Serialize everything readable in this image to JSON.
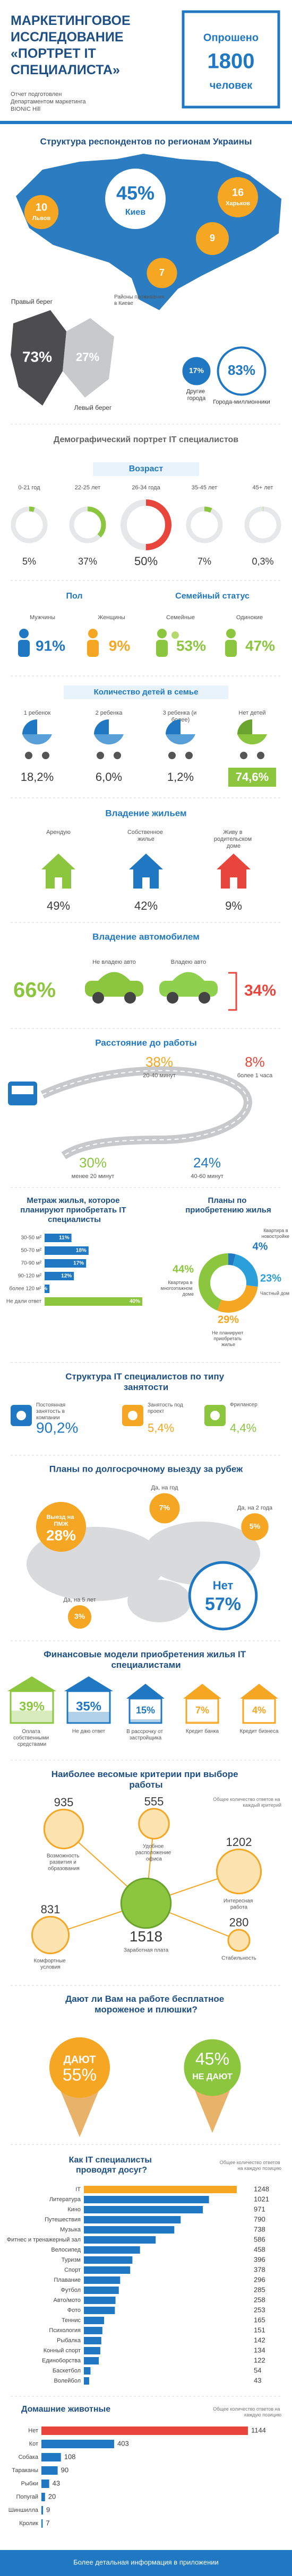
{
  "header": {
    "title": "МАРКЕТИНГОВОЕ ИССЛЕДОВАНИЕ «ПОРТРЕТ IT СПЕЦИАЛИСТА»",
    "surveyed": {
      "label": "Опрошено",
      "count": 1800,
      "unit": "человек"
    },
    "credit": "Отчет подготовлен Департаментом маркетинга BIONIC Hill"
  },
  "regions": {
    "title": "Структура респондентов по регионам Украины",
    "cities": [
      {
        "name": "Львов",
        "value": 10
      },
      {
        "name": "Киев",
        "value": 45,
        "value_label": "45%"
      },
      {
        "name": "Харьков",
        "value": 16
      },
      {
        "value": 9
      },
      {
        "value": 7
      }
    ],
    "kyiv": {
      "title": "Районы проживания в Киеве",
      "banks": [
        {
          "label": "Правый берег",
          "value": 73,
          "value_label": "73%"
        },
        {
          "label": "Левый берег",
          "value": 27,
          "value_label": "27%"
        }
      ]
    },
    "city_types": [
      {
        "label": "Другие города",
        "value": 17,
        "value_label": "17%"
      },
      {
        "label": "Города-миллионники",
        "value": 83,
        "value_label": "83%"
      }
    ]
  },
  "demographics": {
    "title": "Демографический портрет IT специалистов",
    "age": {
      "title": "Возраст",
      "items": [
        {
          "label": "0-21 год",
          "value": 5,
          "value_label": "5%"
        },
        {
          "label": "22-25 лет",
          "value": 37,
          "value_label": "37%"
        },
        {
          "label": "26-34 года",
          "value": 50,
          "value_label": "50%"
        },
        {
          "label": "35-45 лет",
          "value": 7,
          "value_label": "7%"
        },
        {
          "label": "45+ лет",
          "value": 0.3,
          "value_label": "0,3%"
        }
      ]
    },
    "gender": {
      "title": "Пол",
      "items": [
        {
          "label": "Мужчины",
          "value": 91,
          "value_label": "91%"
        },
        {
          "label": "Женщины",
          "value": 9,
          "value_label": "9%"
        }
      ]
    },
    "family": {
      "title": "Семейный статус",
      "items": [
        {
          "label": "Семейные",
          "value": 53,
          "value_label": "53%"
        },
        {
          "label": "Одинокие",
          "value": 47,
          "value_label": "47%"
        }
      ]
    },
    "children": {
      "title": "Количество детей в семье",
      "items": [
        {
          "label": "1 ребенок",
          "value": 18.2,
          "value_label": "18,2%"
        },
        {
          "label": "2 ребенка",
          "value": 6.0,
          "value_label": "6,0%"
        },
        {
          "label": "3 ребенка (и более)",
          "value": 1.2,
          "value_label": "1,2%"
        },
        {
          "label": "Нет детей",
          "value": 74.6,
          "value_label": "74,6%"
        }
      ]
    }
  },
  "housing": {
    "title": "Владение жильем",
    "items": [
      {
        "label": "Арендую",
        "value": 49,
        "value_label": "49%"
      },
      {
        "label": "Собственное жилье",
        "value": 42,
        "value_label": "42%"
      },
      {
        "label": "Живу в родительском доме",
        "value": 9,
        "value_label": "9%"
      }
    ]
  },
  "car": {
    "title": "Владение автомобилем",
    "items": [
      {
        "label": "Не владею авто",
        "value": 66,
        "value_label": "66%"
      },
      {
        "label": "Владею авто",
        "value": 34,
        "value_label": "34%"
      }
    ]
  },
  "distance": {
    "title": "Расстояние до работы",
    "items": [
      {
        "label": "менее 20 минут",
        "value": 30,
        "value_label": "30%"
      },
      {
        "label": "20-40 минут",
        "value": 38,
        "value_label": "38%"
      },
      {
        "label": "40-60 минут",
        "value": 24,
        "value_label": "24%"
      },
      {
        "label": "более 1 часа",
        "value": 8,
        "value_label": "8%"
      }
    ]
  },
  "metrage": {
    "title": "Метраж жилья, которое планируют приобретать IT специалисты",
    "items": [
      {
        "label": "30-50 м²",
        "value": 11,
        "value_label": "11%"
      },
      {
        "label": "50-70 м²",
        "value": 18,
        "value_label": "18%"
      },
      {
        "label": "70-90 м²",
        "value": 17,
        "value_label": "17%"
      },
      {
        "label": "90-120 м²",
        "value": 12,
        "value_label": "12%"
      },
      {
        "label": "более 120 м²",
        "value": 2,
        "value_label": "2%"
      },
      {
        "label": "Не дали ответ",
        "value": 40,
        "value_label": "40%"
      }
    ]
  },
  "plans": {
    "title": "Планы по приобретению жилья",
    "items": [
      {
        "label": "Квартира в новостройке",
        "value": 4,
        "value_label": "4%"
      },
      {
        "label": "Частный дом",
        "value": 23,
        "value_label": "23%"
      },
      {
        "label": "Не планируют приобретать жилье",
        "value": 29,
        "value_label": "29%"
      },
      {
        "label": "Квартира в многоэтажном доме",
        "value": 44,
        "value_label": "44%"
      }
    ]
  },
  "employment": {
    "title": "Структура IT специалистов по типу занятости",
    "items": [
      {
        "label": "Постоянная занятость в компании",
        "value": 90.2,
        "value_label": "90,2%"
      },
      {
        "label": "Занятость под проект",
        "value": 5.4,
        "value_label": "5,4%"
      },
      {
        "label": "Фрилансер",
        "value": 4.4,
        "value_label": "4,4%"
      }
    ]
  },
  "abroad": {
    "title": "Планы по долгосрочному выезду за рубеж",
    "items": [
      {
        "label": "Выезд на ПМЖ",
        "value": 28,
        "value_label": "28%"
      },
      {
        "label": "Да, на год",
        "value": 7,
        "value_label": "7%"
      },
      {
        "label": "Да, на 2 года",
        "value": 5,
        "value_label": "5%"
      },
      {
        "label": "Да, на 5 лет",
        "value": 3,
        "value_label": "3%"
      },
      {
        "label": "Нет",
        "value": 57,
        "value_label": "57%"
      }
    ]
  },
  "finance": {
    "title": "Финансовые модели приобретения жилья IT специалистами",
    "items": [
      {
        "label": "Оплата собственными средствами",
        "value": 39,
        "value_label": "39%"
      },
      {
        "label": "Не даю ответ",
        "value": 35,
        "value_label": "35%"
      },
      {
        "label": "В рассрочку от застройщика",
        "value": 15,
        "value_label": "15%"
      },
      {
        "label": "Кредит банка",
        "value": 7,
        "value_label": "7%"
      },
      {
        "label": "Кредит бизнеса",
        "value": 4,
        "value_label": "4%"
      }
    ]
  },
  "criteria": {
    "title": "Наиболее весомые критерии при выборе работы",
    "note": "Общее количество ответов на каждый критерий",
    "items": [
      {
        "label": "Возможность развития и образования",
        "value": 935
      },
      {
        "label": "Удобное расположение офиса",
        "value": 555
      },
      {
        "label": "Интересная работа",
        "value": 1202
      },
      {
        "label": "Заработная плата",
        "value": 1518
      },
      {
        "label": "Комфортные условия",
        "value": 831
      },
      {
        "label": "Стабильность",
        "value": 280
      }
    ]
  },
  "perks": {
    "title": "Дают ли Вам на работе бесплатное мороженое и плюшки?",
    "items": [
      {
        "label": "ДАЮТ",
        "value": 55,
        "value_label": "55%"
      },
      {
        "label": "НЕ ДАЮТ",
        "value": 45,
        "value_label": "45%"
      }
    ]
  },
  "leisure": {
    "title": "Как IT специалисты проводят досуг?",
    "note": "Общее количество ответов на каждую позицию",
    "items": [
      {
        "label": "IT",
        "value": 1248
      },
      {
        "label": "Литература",
        "value": 1021
      },
      {
        "label": "Кино",
        "value": 971
      },
      {
        "label": "Путешествия",
        "value": 790
      },
      {
        "label": "Музыка",
        "value": 738
      },
      {
        "label": "Фитнес и тренажерный зал",
        "value": 586
      },
      {
        "label": "Велосипед",
        "value": 458
      },
      {
        "label": "Туризм",
        "value": 396
      },
      {
        "label": "Спорт",
        "value": 378
      },
      {
        "label": "Плавание",
        "value": 296
      },
      {
        "label": "Футбол",
        "value": 285
      },
      {
        "label": "Авто/мото",
        "value": 258
      },
      {
        "label": "Фото",
        "value": 253
      },
      {
        "label": "Теннис",
        "value": 165
      },
      {
        "label": "Психология",
        "value": 151
      },
      {
        "label": "Рыбалка",
        "value": 142
      },
      {
        "label": "Конный спорт",
        "value": 134
      },
      {
        "label": "Единоборства",
        "value": 122
      },
      {
        "label": "Баскетбол",
        "value": 54
      },
      {
        "label": "Волейбол",
        "value": 43
      }
    ]
  },
  "pets": {
    "title": "Домашние животные",
    "note": "Общее количество ответов на каждую позицию",
    "items": [
      {
        "label": "Нет",
        "value": 1144
      },
      {
        "label": "Кот",
        "value": 403
      },
      {
        "label": "Собака",
        "value": 108
      },
      {
        "label": "Тараканы",
        "value": 90
      },
      {
        "label": "Рыбки",
        "value": 43
      },
      {
        "label": "Попугай",
        "value": 20
      },
      {
        "label": "Шиншилла",
        "value": 9
      },
      {
        "label": "Кролик",
        "value": 7
      }
    ]
  },
  "footer": "Более детальная информация в приложении"
}
